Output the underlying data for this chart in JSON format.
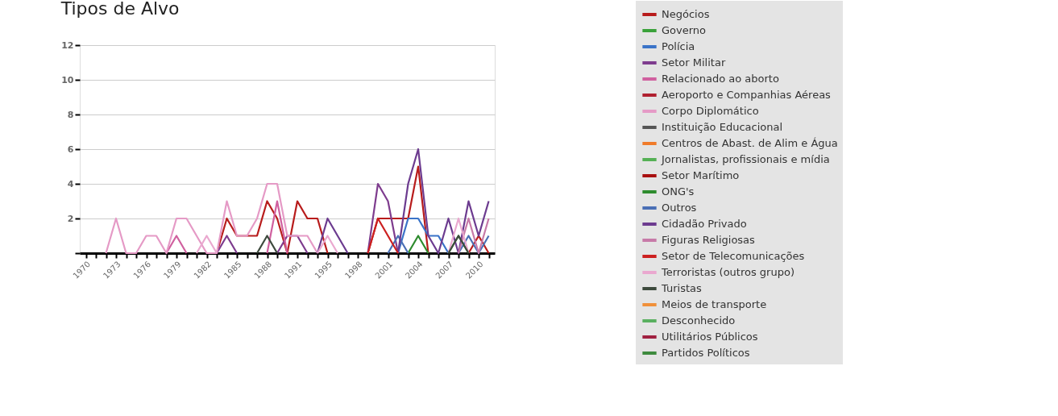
{
  "chart_data": {
    "type": "line",
    "title": "Tipos de Alvo",
    "categories": [
      "1970",
      null,
      null,
      "1973",
      null,
      null,
      "1976",
      null,
      null,
      "1979",
      null,
      null,
      "1982",
      null,
      null,
      "1985",
      null,
      null,
      "1988",
      null,
      null,
      "1991",
      null,
      null,
      "1995",
      null,
      null,
      "1998",
      null,
      null,
      "2001",
      null,
      null,
      "2004",
      null,
      null,
      "2007",
      null,
      null,
      "2010",
      null
    ],
    "series": [
      {
        "name": "Negócios",
        "color": "#b81c1c",
        "values": [
          null,
          null,
          null,
          null,
          null,
          null,
          null,
          null,
          null,
          null,
          null,
          null,
          null,
          0,
          2,
          1,
          1,
          1,
          3,
          2,
          0,
          3,
          2,
          2,
          0,
          null,
          null,
          null,
          0,
          2,
          2,
          2,
          2,
          5,
          0,
          null,
          null,
          null,
          0,
          1,
          0
        ]
      },
      {
        "name": "Governo",
        "color": "#3aa13a",
        "values": [
          null,
          null,
          null,
          null,
          null,
          null,
          null,
          null,
          null,
          null,
          null,
          null,
          null,
          null,
          null,
          null,
          null,
          null,
          null,
          null,
          null,
          null,
          null,
          null,
          null,
          null,
          null,
          null,
          null,
          null,
          null,
          null,
          null,
          null,
          null,
          null,
          null,
          null,
          null,
          null,
          null
        ]
      },
      {
        "name": "Polícia",
        "color": "#3a73c8",
        "values": [
          null,
          null,
          null,
          null,
          null,
          null,
          null,
          null,
          null,
          null,
          null,
          null,
          null,
          null,
          null,
          null,
          null,
          null,
          null,
          null,
          null,
          null,
          null,
          null,
          null,
          null,
          null,
          null,
          null,
          null,
          null,
          0,
          2,
          2,
          1,
          1,
          0,
          null,
          null,
          null,
          null
        ]
      },
      {
        "name": "Setor Militar",
        "color": "#7e3c8e",
        "values": [
          null,
          null,
          null,
          null,
          null,
          null,
          null,
          null,
          null,
          null,
          null,
          null,
          null,
          0,
          1,
          0,
          null,
          null,
          null,
          0,
          1,
          1,
          0,
          null,
          null,
          null,
          null,
          null,
          0,
          4,
          3,
          0,
          null,
          null,
          null,
          null,
          null,
          null,
          null,
          null,
          null
        ]
      },
      {
        "name": "Relacionado ao aborto",
        "color": "#d0609f",
        "values": [
          null,
          null,
          null,
          null,
          null,
          null,
          null,
          null,
          0,
          1,
          0,
          null,
          null,
          null,
          null,
          null,
          null,
          null,
          0,
          3,
          0,
          null,
          null,
          null,
          null,
          null,
          null,
          null,
          null,
          null,
          null,
          null,
          null,
          null,
          null,
          null,
          null,
          null,
          null,
          null,
          null
        ]
      },
      {
        "name": "Aeroporto e Companhias Aéreas",
        "color": "#b02030",
        "values": [
          null,
          null,
          null,
          null,
          null,
          null,
          null,
          null,
          null,
          null,
          null,
          null,
          null,
          null,
          null,
          null,
          null,
          null,
          null,
          null,
          null,
          null,
          null,
          null,
          null,
          null,
          null,
          null,
          null,
          null,
          null,
          null,
          null,
          null,
          null,
          null,
          null,
          null,
          null,
          null,
          null
        ]
      },
      {
        "name": "Corpo Diplomático",
        "color": "#e59ac6",
        "values": [
          null,
          null,
          0,
          2,
          0,
          0,
          1,
          1,
          0,
          2,
          2,
          1,
          0,
          0,
          3,
          1,
          1,
          2,
          4,
          4,
          1,
          1,
          1,
          0,
          null,
          null,
          null,
          null,
          null,
          null,
          null,
          null,
          null,
          null,
          null,
          null,
          null,
          null,
          null,
          null,
          null
        ]
      },
      {
        "name": "Instituição Educacional",
        "color": "#555555",
        "values": [
          null,
          null,
          null,
          null,
          null,
          null,
          null,
          null,
          null,
          null,
          null,
          null,
          null,
          null,
          null,
          null,
          null,
          null,
          null,
          null,
          null,
          null,
          null,
          null,
          null,
          null,
          null,
          null,
          null,
          null,
          null,
          null,
          null,
          null,
          null,
          null,
          null,
          null,
          null,
          null,
          null
        ]
      },
      {
        "name": "Centros de Abast. de Alim e Água",
        "color": "#f07b2a",
        "values": [
          null,
          null,
          null,
          null,
          null,
          null,
          null,
          null,
          null,
          null,
          null,
          null,
          null,
          null,
          null,
          null,
          null,
          null,
          null,
          null,
          null,
          null,
          null,
          null,
          null,
          null,
          null,
          null,
          null,
          null,
          null,
          null,
          null,
          null,
          null,
          null,
          null,
          null,
          null,
          null,
          null
        ]
      },
      {
        "name": "Jornalistas, profissionais e mídia",
        "color": "#55b055",
        "values": [
          null,
          null,
          null,
          null,
          null,
          null,
          null,
          null,
          null,
          null,
          null,
          null,
          null,
          null,
          null,
          null,
          null,
          null,
          null,
          null,
          null,
          null,
          null,
          null,
          null,
          null,
          null,
          null,
          null,
          null,
          null,
          null,
          null,
          null,
          null,
          null,
          null,
          null,
          null,
          null,
          null
        ]
      },
      {
        "name": "Setor Marítimo",
        "color": "#a81010",
        "values": [
          null,
          null,
          null,
          null,
          null,
          null,
          null,
          null,
          null,
          null,
          null,
          null,
          null,
          null,
          null,
          null,
          null,
          null,
          null,
          null,
          null,
          null,
          null,
          null,
          null,
          null,
          null,
          null,
          null,
          null,
          null,
          null,
          null,
          null,
          null,
          null,
          null,
          null,
          null,
          null,
          null
        ]
      },
      {
        "name": "ONG's",
        "color": "#2e8b2e",
        "values": [
          null,
          null,
          null,
          null,
          null,
          null,
          null,
          null,
          null,
          null,
          null,
          null,
          null,
          null,
          null,
          null,
          null,
          null,
          null,
          null,
          null,
          null,
          null,
          null,
          null,
          null,
          null,
          null,
          null,
          null,
          null,
          null,
          0,
          1,
          0,
          null,
          0,
          1,
          0,
          null,
          null
        ]
      },
      {
        "name": "Outros",
        "color": "#4a6fb5",
        "values": [
          null,
          null,
          null,
          null,
          null,
          null,
          null,
          null,
          null,
          null,
          null,
          null,
          null,
          null,
          null,
          null,
          null,
          null,
          null,
          null,
          null,
          null,
          null,
          null,
          null,
          null,
          null,
          null,
          null,
          null,
          0,
          1,
          0,
          null,
          null,
          null,
          null,
          0,
          1,
          0,
          1
        ]
      },
      {
        "name": "Cidadão Privado",
        "color": "#6c3b8f",
        "values": [
          null,
          null,
          null,
          null,
          null,
          null,
          null,
          null,
          null,
          null,
          null,
          null,
          null,
          null,
          null,
          null,
          null,
          null,
          null,
          null,
          null,
          null,
          null,
          0,
          2,
          1,
          0,
          null,
          null,
          null,
          null,
          0,
          4,
          6,
          1,
          0,
          2,
          0,
          3,
          1,
          3
        ]
      },
      {
        "name": "Figuras Religiosas",
        "color": "#c77aa8",
        "values": [
          null,
          null,
          null,
          null,
          null,
          null,
          null,
          null,
          null,
          null,
          null,
          null,
          null,
          null,
          null,
          null,
          null,
          null,
          null,
          null,
          null,
          null,
          null,
          null,
          null,
          null,
          null,
          null,
          null,
          null,
          null,
          null,
          null,
          null,
          null,
          null,
          null,
          0,
          2,
          0,
          2
        ]
      },
      {
        "name": "Setor de Telecomunicações",
        "color": "#cc2020",
        "values": [
          null,
          null,
          null,
          null,
          null,
          null,
          null,
          null,
          null,
          null,
          null,
          null,
          null,
          null,
          null,
          null,
          null,
          null,
          null,
          null,
          null,
          null,
          null,
          null,
          null,
          null,
          null,
          null,
          0,
          2,
          1,
          0,
          null,
          null,
          null,
          null,
          null,
          null,
          null,
          null,
          null
        ]
      },
      {
        "name": "Terroristas (outros grupo)",
        "color": "#eaa8cf",
        "values": [
          null,
          null,
          null,
          null,
          null,
          null,
          null,
          null,
          null,
          null,
          null,
          0,
          1,
          0,
          null,
          null,
          null,
          null,
          null,
          null,
          null,
          null,
          null,
          0,
          1,
          0,
          null,
          null,
          null,
          null,
          null,
          null,
          null,
          null,
          null,
          null,
          0,
          2,
          0,
          null,
          null
        ]
      },
      {
        "name": "Turistas",
        "color": "#3d4a3d",
        "values": [
          null,
          null,
          null,
          null,
          null,
          null,
          null,
          null,
          null,
          null,
          null,
          null,
          null,
          null,
          null,
          null,
          null,
          0,
          1,
          0,
          null,
          null,
          null,
          null,
          null,
          null,
          null,
          null,
          null,
          null,
          null,
          null,
          null,
          null,
          null,
          null,
          0,
          1,
          0,
          null,
          null
        ]
      },
      {
        "name": "Meios de transporte",
        "color": "#f0903a",
        "values": [
          null,
          null,
          null,
          null,
          null,
          null,
          null,
          null,
          null,
          null,
          null,
          null,
          null,
          null,
          null,
          null,
          null,
          null,
          null,
          null,
          null,
          null,
          null,
          null,
          null,
          null,
          null,
          null,
          null,
          null,
          null,
          null,
          null,
          null,
          null,
          null,
          null,
          null,
          null,
          null,
          null
        ]
      },
      {
        "name": "Desconhecido",
        "color": "#5ab060",
        "values": [
          null,
          null,
          null,
          null,
          null,
          null,
          null,
          null,
          null,
          null,
          null,
          null,
          null,
          null,
          null,
          null,
          null,
          null,
          null,
          null,
          null,
          null,
          null,
          null,
          null,
          null,
          null,
          null,
          null,
          null,
          null,
          null,
          null,
          null,
          null,
          null,
          null,
          null,
          null,
          null,
          null
        ]
      },
      {
        "name": "Utilitários Públicos",
        "color": "#a02040",
        "values": [
          null,
          null,
          null,
          null,
          null,
          null,
          null,
          null,
          null,
          null,
          null,
          null,
          null,
          null,
          null,
          null,
          null,
          null,
          null,
          null,
          null,
          null,
          null,
          null,
          null,
          null,
          null,
          null,
          null,
          null,
          null,
          null,
          null,
          null,
          null,
          null,
          null,
          null,
          null,
          null,
          null
        ]
      },
      {
        "name": "Partidos Políticos",
        "color": "#3e8a3e",
        "values": [
          null,
          null,
          null,
          null,
          null,
          null,
          null,
          null,
          null,
          null,
          null,
          null,
          null,
          null,
          null,
          null,
          null,
          null,
          null,
          null,
          null,
          null,
          null,
          null,
          null,
          null,
          null,
          null,
          null,
          null,
          null,
          null,
          null,
          null,
          null,
          null,
          null,
          null,
          null,
          null,
          null
        ]
      }
    ],
    "ylim": [
      0,
      12
    ],
    "yticks": [
      {
        "value": 0,
        "label": null
      },
      2,
      4,
      6,
      8,
      10,
      12
    ],
    "grid": "y",
    "legend": "right",
    "marker": "none",
    "line_style": "solid"
  }
}
